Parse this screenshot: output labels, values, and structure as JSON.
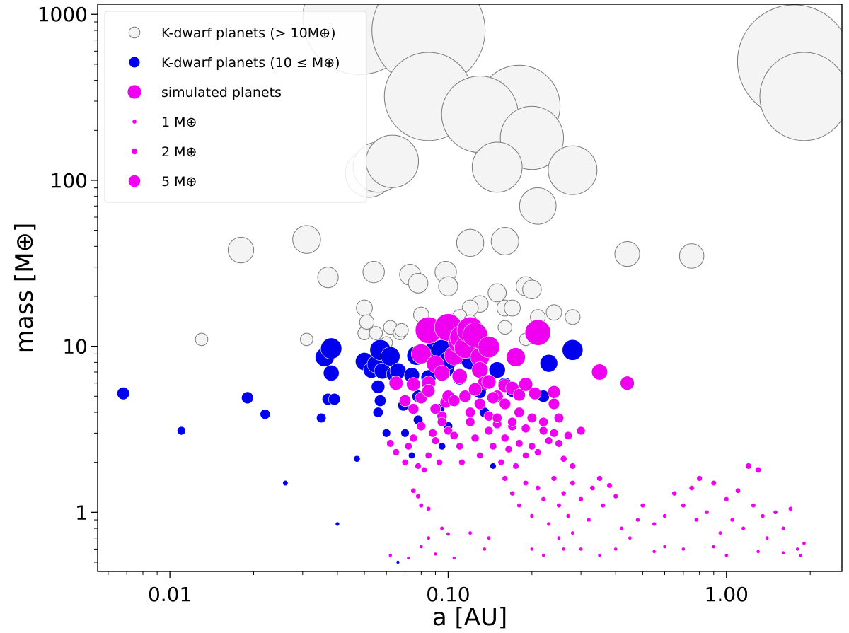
{
  "chart_data": {
    "type": "scatter",
    "xlabel": "a [AU]",
    "ylabel": "mass [M⊕]",
    "xscale": "log",
    "yscale": "log",
    "xlim": [
      0.0055,
      2.6
    ],
    "ylim": [
      0.44,
      1150
    ],
    "x_ticks": [
      {
        "value": 0.01,
        "label": "0.01"
      },
      {
        "value": 0.1,
        "label": "0.10"
      },
      {
        "value": 1.0,
        "label": "1.00"
      }
    ],
    "y_ticks": [
      {
        "value": 1,
        "label": "1"
      },
      {
        "value": 10,
        "label": "10"
      },
      {
        "value": 100,
        "label": "100"
      },
      {
        "value": 1000,
        "label": "1000"
      }
    ],
    "legend": {
      "position": "top-left",
      "entries": [
        {
          "label": "K-dwarf planets (> 10M⊕)",
          "kind": "big",
          "marker_mass": 6
        },
        {
          "label": "K-dwarf planets (10 ≤ M⊕)",
          "kind": "small",
          "marker_mass": 6
        },
        {
          "label": "simulated planets",
          "kind": "sim",
          "marker_mass": 6
        },
        {
          "label": "1 M⊕",
          "kind": "sim",
          "marker_mass": 1
        },
        {
          "label": "2 M⊕",
          "kind": "sim",
          "marker_mass": 2
        },
        {
          "label": "5 M⊕",
          "kind": "sim",
          "marker_mass": 5
        }
      ]
    },
    "colors": {
      "big_fill": "#f4f4f4",
      "big_edge": "#7a7a7a",
      "small_fill": "#0000ee",
      "sim_fill": "#f000f0"
    },
    "series": [
      {
        "name": "K-dwarf planets (> 10M⊕)",
        "points": [
          [
            0.048,
            950
          ],
          [
            0.085,
            800
          ],
          [
            1.75,
            520
          ],
          [
            1.9,
            320
          ],
          [
            0.18,
            280
          ],
          [
            0.085,
            320
          ],
          [
            0.13,
            250
          ],
          [
            0.2,
            180
          ],
          [
            0.052,
            110
          ],
          [
            0.056,
            120
          ],
          [
            0.063,
            130
          ],
          [
            0.15,
            120
          ],
          [
            0.28,
            115
          ],
          [
            0.21,
            70
          ],
          [
            0.031,
            44
          ],
          [
            0.018,
            38
          ],
          [
            0.12,
            42
          ],
          [
            0.16,
            43
          ],
          [
            0.44,
            36
          ],
          [
            0.75,
            35
          ],
          [
            0.037,
            26
          ],
          [
            0.054,
            28
          ],
          [
            0.073,
            27
          ],
          [
            0.098,
            28
          ],
          [
            0.078,
            24
          ],
          [
            0.1,
            23
          ],
          [
            0.19,
            23
          ],
          [
            0.2,
            22
          ],
          [
            0.13,
            18
          ],
          [
            0.12,
            17
          ],
          [
            0.15,
            21
          ],
          [
            0.16,
            17
          ],
          [
            0.17,
            17
          ],
          [
            0.05,
            17
          ],
          [
            0.05,
            12
          ],
          [
            0.055,
            12
          ],
          [
            0.051,
            14
          ],
          [
            0.062,
            13
          ],
          [
            0.067,
            12
          ],
          [
            0.068,
            12.5
          ],
          [
            0.08,
            15.5
          ],
          [
            0.11,
            15
          ],
          [
            0.12,
            14
          ],
          [
            0.21,
            15
          ],
          [
            0.24,
            16
          ],
          [
            0.28,
            15
          ],
          [
            0.013,
            11
          ],
          [
            0.031,
            11
          ],
          [
            0.19,
            11
          ],
          [
            0.16,
            13
          ],
          [
            0.06,
            10.5
          ]
        ]
      },
      {
        "name": "K-dwarf planets (10 ≤ M⊕)",
        "points": [
          [
            0.0068,
            5.2
          ],
          [
            0.011,
            3.1
          ],
          [
            0.019,
            4.9
          ],
          [
            0.022,
            3.9
          ],
          [
            0.026,
            1.5
          ],
          [
            0.035,
            3.7
          ],
          [
            0.036,
            8.6
          ],
          [
            0.038,
            9.7
          ],
          [
            0.038,
            6.9
          ],
          [
            0.037,
            4.8
          ],
          [
            0.039,
            4.8
          ],
          [
            0.04,
            0.85
          ],
          [
            0.047,
            2.1
          ],
          [
            0.05,
            8.1
          ],
          [
            0.053,
            7.2
          ],
          [
            0.055,
            7.8
          ],
          [
            0.057,
            9.5
          ],
          [
            0.058,
            7.1
          ],
          [
            0.056,
            5.7
          ],
          [
            0.057,
            4.7
          ],
          [
            0.056,
            4.0
          ],
          [
            0.06,
            3.0
          ],
          [
            0.062,
            8.7
          ],
          [
            0.064,
            6.8
          ],
          [
            0.066,
            7.1
          ],
          [
            0.066,
            0.5
          ],
          [
            0.069,
            4.4
          ],
          [
            0.07,
            3.0
          ],
          [
            0.074,
            6.7
          ],
          [
            0.077,
            8.8
          ],
          [
            0.078,
            5.0
          ],
          [
            0.078,
            3.6
          ],
          [
            0.074,
            2.2
          ],
          [
            0.085,
            6.5
          ],
          [
            0.09,
            9.5
          ],
          [
            0.095,
            9.5
          ],
          [
            0.098,
            7.3
          ],
          [
            0.1,
            8.2
          ],
          [
            0.1,
            3.3
          ],
          [
            0.095,
            2.5
          ],
          [
            0.093,
            4.2
          ],
          [
            0.11,
            8.9
          ],
          [
            0.12,
            8.2
          ],
          [
            0.125,
            9.5
          ],
          [
            0.128,
            9.7
          ],
          [
            0.13,
            5.3
          ],
          [
            0.135,
            4.0
          ],
          [
            0.145,
            1.9
          ],
          [
            0.15,
            7.2
          ],
          [
            0.16,
            5.9
          ],
          [
            0.17,
            5.4
          ],
          [
            0.22,
            5.0
          ],
          [
            0.23,
            7.9
          ],
          [
            0.28,
            9.5
          ],
          [
            0.11,
            6.5
          ]
        ]
      },
      {
        "name": "simulated planets",
        "points": [
          [
            0.062,
            2.6
          ],
          [
            0.065,
            2.3
          ],
          [
            0.07,
            2.0
          ],
          [
            0.072,
            2.5
          ],
          [
            0.075,
            2.8
          ],
          [
            0.078,
            1.9
          ],
          [
            0.08,
            3.3
          ],
          [
            0.082,
            1.8
          ],
          [
            0.085,
            2.2
          ],
          [
            0.088,
            3.0
          ],
          [
            0.09,
            2.7
          ],
          [
            0.093,
            2.0
          ],
          [
            0.095,
            3.8
          ],
          [
            0.098,
            4.6
          ],
          [
            0.1,
            3.1
          ],
          [
            0.105,
            2.9
          ],
          [
            0.11,
            2.5
          ],
          [
            0.112,
            2.0
          ],
          [
            0.12,
            3.5
          ],
          [
            0.125,
            2.8
          ],
          [
            0.13,
            2.2
          ],
          [
            0.14,
            3.1
          ],
          [
            0.145,
            2.5
          ],
          [
            0.15,
            3.4
          ],
          [
            0.155,
            2.0
          ],
          [
            0.16,
            2.8
          ],
          [
            0.165,
            2.4
          ],
          [
            0.17,
            3.3
          ],
          [
            0.175,
            1.9
          ],
          [
            0.18,
            2.6
          ],
          [
            0.19,
            2.2
          ],
          [
            0.2,
            2.5
          ],
          [
            0.21,
            2.3
          ],
          [
            0.22,
            3.1
          ],
          [
            0.23,
            2.7
          ],
          [
            0.24,
            3.0
          ],
          [
            0.25,
            2.6
          ],
          [
            0.26,
            2.1
          ],
          [
            0.27,
            2.9
          ],
          [
            0.28,
            1.9
          ],
          [
            0.3,
            3.1
          ],
          [
            0.065,
            6.0
          ],
          [
            0.075,
            5.9
          ],
          [
            0.08,
            9.0
          ],
          [
            0.085,
            12.5
          ],
          [
            0.085,
            6.0
          ],
          [
            0.09,
            7.8
          ],
          [
            0.095,
            6.9
          ],
          [
            0.1,
            13.0
          ],
          [
            0.105,
            8.8
          ],
          [
            0.11,
            10.6
          ],
          [
            0.112,
            11.3
          ],
          [
            0.115,
            9.8
          ],
          [
            0.12,
            12.5
          ],
          [
            0.125,
            11.7
          ],
          [
            0.13,
            8.6
          ],
          [
            0.14,
            9.9
          ],
          [
            0.13,
            7.2
          ],
          [
            0.135,
            6.0
          ],
          [
            0.14,
            6.1
          ],
          [
            0.15,
            5.0
          ],
          [
            0.16,
            5.8
          ],
          [
            0.17,
            5.6
          ],
          [
            0.175,
            8.6
          ],
          [
            0.18,
            5.1
          ],
          [
            0.19,
            5.9
          ],
          [
            0.205,
            5.2
          ],
          [
            0.21,
            12.1
          ],
          [
            0.24,
            5.3
          ],
          [
            0.35,
            7.0
          ],
          [
            0.44,
            6.0
          ],
          [
            0.07,
            4.7
          ],
          [
            0.075,
            4.2
          ],
          [
            0.08,
            4.9
          ],
          [
            0.085,
            5.4
          ],
          [
            0.09,
            4.2
          ],
          [
            0.095,
            3.5
          ],
          [
            0.1,
            5.0
          ],
          [
            0.105,
            4.7
          ],
          [
            0.11,
            6.6
          ],
          [
            0.115,
            5.0
          ],
          [
            0.12,
            4.0
          ],
          [
            0.125,
            5.5
          ],
          [
            0.13,
            4.5
          ],
          [
            0.14,
            3.8
          ],
          [
            0.145,
            4.9
          ],
          [
            0.15,
            3.7
          ],
          [
            0.16,
            4.5
          ],
          [
            0.17,
            3.5
          ],
          [
            0.18,
            4.0
          ],
          [
            0.19,
            3.2
          ],
          [
            0.2,
            3.7
          ],
          [
            0.22,
            3.5
          ],
          [
            0.24,
            4.5
          ],
          [
            0.25,
            3.7
          ],
          [
            0.062,
            0.55
          ],
          [
            0.072,
            0.53
          ],
          [
            0.08,
            0.62
          ],
          [
            0.085,
            0.7
          ],
          [
            0.09,
            0.56
          ],
          [
            0.095,
            0.8
          ],
          [
            0.1,
            0.74
          ],
          [
            0.105,
            0.53
          ],
          [
            0.075,
            1.35
          ],
          [
            0.078,
            1.25
          ],
          [
            0.08,
            1.1
          ],
          [
            0.085,
            1.05
          ],
          [
            0.16,
            1.6
          ],
          [
            0.17,
            1.3
          ],
          [
            0.18,
            1.1
          ],
          [
            0.19,
            1.5
          ],
          [
            0.2,
            0.95
          ],
          [
            0.21,
            1.4
          ],
          [
            0.22,
            1.2
          ],
          [
            0.23,
            0.85
          ],
          [
            0.24,
            1.6
          ],
          [
            0.25,
            1.1
          ],
          [
            0.26,
            1.3
          ],
          [
            0.27,
            0.95
          ],
          [
            0.28,
            1.5
          ],
          [
            0.3,
            1.2
          ],
          [
            0.32,
            0.9
          ],
          [
            0.33,
            1.4
          ],
          [
            0.35,
            1.6
          ],
          [
            0.36,
            1.1
          ],
          [
            0.38,
            1.45
          ],
          [
            0.4,
            1.25
          ],
          [
            0.42,
            0.8
          ],
          [
            0.45,
            0.7
          ],
          [
            0.48,
            0.9
          ],
          [
            0.5,
            1.1
          ],
          [
            0.55,
            0.85
          ],
          [
            0.6,
            0.95
          ],
          [
            0.65,
            1.3
          ],
          [
            0.7,
            1.1
          ],
          [
            0.75,
            1.4
          ],
          [
            0.78,
            0.9
          ],
          [
            0.8,
            1.6
          ],
          [
            0.85,
            1.0
          ],
          [
            0.9,
            1.5
          ],
          [
            0.95,
            0.75
          ],
          [
            1.0,
            1.2
          ],
          [
            1.05,
            0.9
          ],
          [
            1.1,
            1.35
          ],
          [
            1.15,
            0.8
          ],
          [
            1.2,
            1.9
          ],
          [
            1.25,
            1.1
          ],
          [
            1.3,
            1.8
          ],
          [
            1.35,
            0.95
          ],
          [
            1.4,
            0.7
          ],
          [
            1.5,
            1.0
          ],
          [
            1.6,
            0.8
          ],
          [
            1.7,
            1.05
          ],
          [
            1.8,
            0.6
          ],
          [
            1.9,
            0.65
          ],
          [
            0.35,
            0.55
          ],
          [
            0.4,
            0.6
          ],
          [
            0.55,
            0.58
          ],
          [
            0.6,
            0.62
          ],
          [
            0.7,
            0.6
          ],
          [
            0.9,
            0.62
          ],
          [
            1.0,
            0.55
          ],
          [
            1.3,
            0.58
          ],
          [
            1.6,
            0.57
          ],
          [
            1.85,
            0.55
          ],
          [
            0.2,
            0.6
          ],
          [
            0.22,
            0.55
          ],
          [
            0.26,
            0.6
          ],
          [
            0.3,
            0.6
          ],
          [
            0.12,
            0.75
          ],
          [
            0.14,
            0.7
          ],
          [
            0.135,
            0.6
          ],
          [
            0.25,
            0.7
          ],
          [
            0.28,
            0.75
          ]
        ]
      }
    ]
  }
}
